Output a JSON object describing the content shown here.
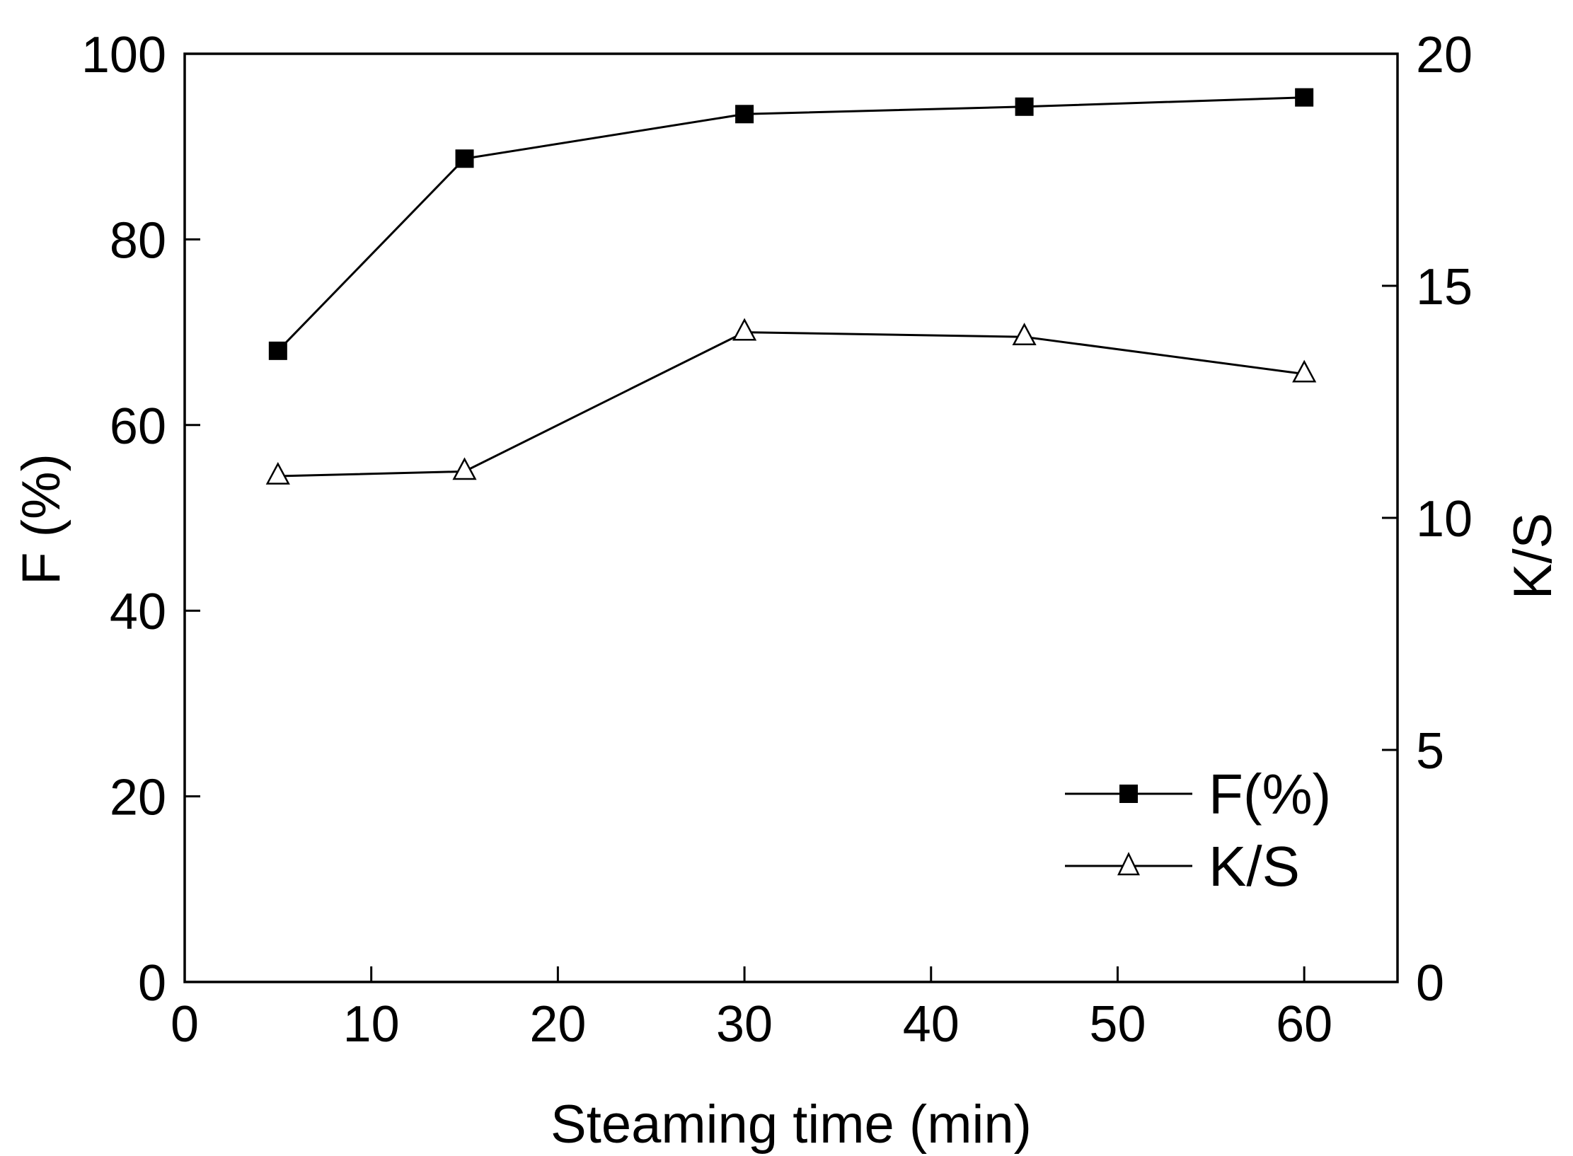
{
  "chart_data": {
    "type": "line",
    "title": "",
    "xlabel": "Steaming time (min)",
    "ylabel_left": "F (%)",
    "ylabel_right": "K/S",
    "xlim": [
      0,
      65
    ],
    "ylim_left": [
      0,
      100
    ],
    "ylim_right": [
      0,
      20
    ],
    "x_ticks": [
      "0",
      "10",
      "20",
      "30",
      "40",
      "50",
      "60"
    ],
    "y_left_ticks": [
      "0",
      "20",
      "40",
      "60",
      "80",
      "100"
    ],
    "y_right_ticks": [
      "0",
      "5",
      "10",
      "15",
      "20"
    ],
    "x": [
      5,
      15,
      30,
      45,
      60
    ],
    "series": [
      {
        "name": "F(%)",
        "axis": "left",
        "marker": "filled-square",
        "values": [
          68,
          88.7,
          93.5,
          94.3,
          95.3
        ]
      },
      {
        "name": "K/S",
        "axis": "right",
        "marker": "open-triangle",
        "values": [
          10.9,
          11.0,
          14.0,
          13.9,
          13.1
        ]
      }
    ],
    "legend": [
      "F(%)",
      "K/S"
    ],
    "legend_position": "lower-right",
    "grid": false,
    "colors": {
      "line": "#000000",
      "marker_fill_square": "#000000",
      "marker_fill_triangle": "#ffffff"
    }
  }
}
